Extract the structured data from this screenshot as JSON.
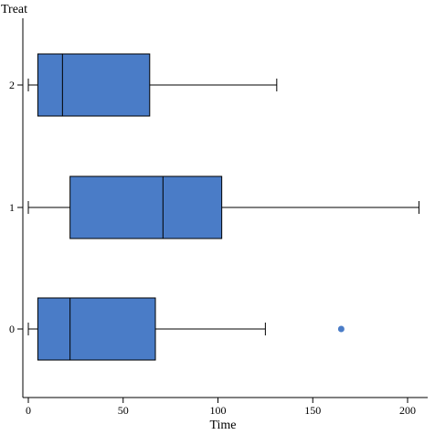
{
  "chart_data": {
    "type": "boxplot",
    "orientation": "horizontal",
    "xlabel": "Time",
    "ylabel": "Treat",
    "xlim": [
      -2,
      210
    ],
    "x_ticks": [
      0,
      50,
      100,
      150,
      200
    ],
    "categories": [
      "0",
      "1",
      "2"
    ],
    "box_color": "#4a7cc7",
    "outlier_color": "#4a7cc7",
    "grid": false,
    "legend": "none",
    "boxes": [
      {
        "category": "0",
        "whisker_low": 0,
        "q1": 5,
        "median": 22,
        "q3": 67,
        "whisker_high": 125,
        "outliers": [
          165
        ]
      },
      {
        "category": "1",
        "whisker_low": 0,
        "q1": 22,
        "median": 71,
        "q3": 102,
        "whisker_high": 206,
        "outliers": []
      },
      {
        "category": "2",
        "whisker_low": 0,
        "q1": 5,
        "median": 18,
        "q3": 64,
        "whisker_high": 131,
        "outliers": []
      }
    ]
  }
}
